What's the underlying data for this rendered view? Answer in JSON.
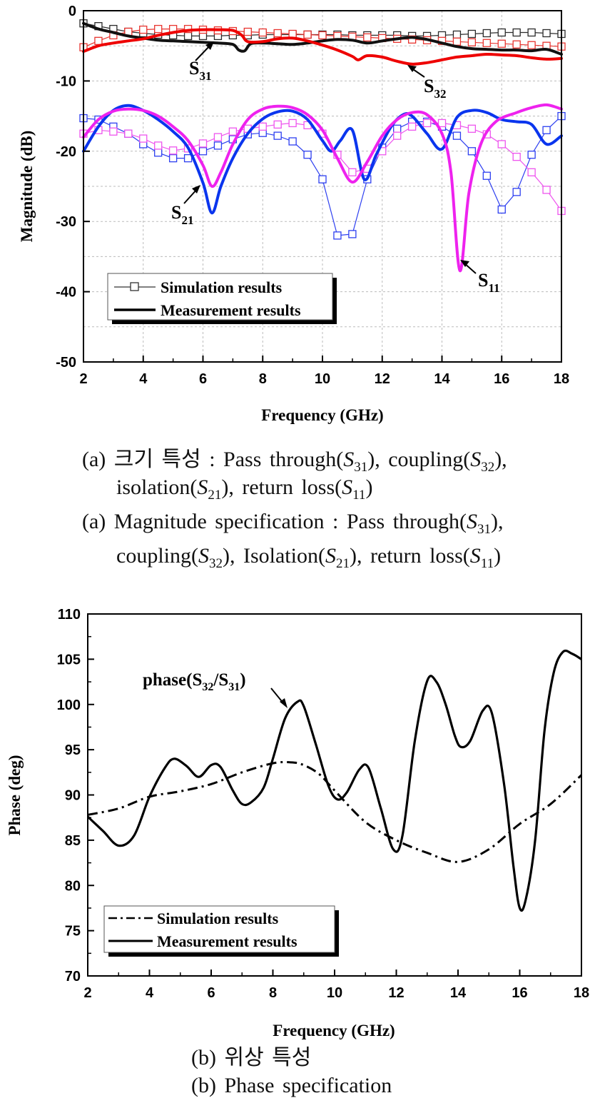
{
  "colors": {
    "sim_S31": "#2b2b2b",
    "sim_S32": "#e8342f",
    "sim_S21": "#2d3ff0",
    "sim_S11": "#ee55ee",
    "meas_S31": "#111111",
    "meas_S32": "#ee0000",
    "meas_S21": "#0a35ee",
    "meas_S11": "#ee22ee"
  },
  "chart_data": [
    {
      "type": "line",
      "title": "",
      "xlabel": "Frequency (GHz)",
      "ylabel": "Magnitude (dB)",
      "xlim": [
        2,
        18
      ],
      "ylim": [
        -50,
        0
      ],
      "xticks": [
        "2",
        "4",
        "6",
        "8",
        "10",
        "12",
        "14",
        "16",
        "18"
      ],
      "yticks": [
        "0",
        "-10",
        "-20",
        "-30",
        "-40",
        "-50"
      ],
      "grid": true,
      "legend": {
        "position": "bottom-left",
        "entries": [
          "Simulation results",
          "Measurement results"
        ]
      },
      "annotations": {
        "S31": {
          "main": "S",
          "sub": "31"
        },
        "S32": {
          "main": "S",
          "sub": "32"
        },
        "S21": {
          "main": "S",
          "sub": "21"
        },
        "S11": {
          "main": "S",
          "sub": "11"
        }
      },
      "series": [
        {
          "name": "S31",
          "kind": "simulation",
          "x": [
            2,
            2.5,
            3,
            3.5,
            4,
            4.5,
            5,
            5.5,
            6,
            6.5,
            7,
            7.5,
            8,
            8.5,
            9,
            9.5,
            10,
            10.5,
            11,
            11.5,
            12,
            12.5,
            13,
            13.5,
            14,
            14.5,
            15,
            15.5,
            16,
            16.5,
            17,
            17.5,
            18
          ],
          "y": [
            -1.8,
            -2.2,
            -2.6,
            -3.0,
            -3.2,
            -3.4,
            -3.5,
            -3.6,
            -3.6,
            -3.6,
            -3.5,
            -3.5,
            -3.4,
            -3.4,
            -3.4,
            -3.4,
            -3.4,
            -3.4,
            -3.5,
            -3.5,
            -3.5,
            -3.5,
            -3.6,
            -3.6,
            -3.5,
            -3.4,
            -3.3,
            -3.2,
            -3.1,
            -3.1,
            -3.1,
            -3.2,
            -3.3
          ]
        },
        {
          "name": "S32",
          "kind": "simulation",
          "x": [
            2,
            2.5,
            3,
            3.5,
            4,
            4.5,
            5,
            5.5,
            6,
            6.5,
            7,
            7.5,
            8,
            8.5,
            9,
            9.5,
            10,
            10.5,
            11,
            11.5,
            12,
            12.5,
            13,
            13.5,
            14,
            14.5,
            15,
            15.5,
            16,
            16.5,
            17,
            17.5,
            18
          ],
          "y": [
            -5.2,
            -4.3,
            -3.5,
            -3.0,
            -2.7,
            -2.6,
            -2.6,
            -2.6,
            -2.7,
            -2.8,
            -2.9,
            -3.0,
            -3.1,
            -3.2,
            -3.3,
            -3.4,
            -3.5,
            -3.6,
            -3.7,
            -3.8,
            -3.9,
            -4.0,
            -4.1,
            -4.2,
            -4.3,
            -4.4,
            -4.5,
            -4.6,
            -4.7,
            -4.8,
            -4.9,
            -5.0,
            -5.1
          ]
        },
        {
          "name": "S21",
          "kind": "simulation",
          "x": [
            2,
            2.5,
            3,
            3.5,
            4,
            4.5,
            5,
            5.5,
            6,
            6.5,
            7,
            7.5,
            8,
            8.5,
            9,
            9.5,
            10,
            10.5,
            11,
            11.5,
            12,
            12.5,
            13,
            13.5,
            14,
            14.5,
            15,
            15.5,
            16,
            16.5,
            17,
            17.5,
            18
          ],
          "y": [
            -15.3,
            -15.5,
            -16.5,
            -17.5,
            -19.0,
            -20.2,
            -21.0,
            -21.0,
            -20.0,
            -19.2,
            -18.3,
            -17.6,
            -17.4,
            -17.8,
            -18.6,
            -20.5,
            -24.0,
            -32.0,
            -31.8,
            -24.0,
            -19.5,
            -16.8,
            -15.8,
            -15.8,
            -16.5,
            -17.8,
            -20.0,
            -23.5,
            -28.3,
            -25.8,
            -20.5,
            -17.0,
            -15.0
          ]
        },
        {
          "name": "S11",
          "kind": "simulation",
          "x": [
            2,
            2.5,
            3,
            3.5,
            4,
            4.5,
            5,
            5.5,
            6,
            6.5,
            7,
            7.5,
            8,
            8.5,
            9,
            9.5,
            10,
            10.5,
            11,
            11.5,
            12,
            12.5,
            13,
            13.5,
            14,
            14.5,
            15,
            15.5,
            16,
            16.5,
            17,
            17.5,
            18
          ],
          "y": [
            -17.5,
            -17.0,
            -17.2,
            -17.5,
            -18.2,
            -19.2,
            -19.9,
            -19.6,
            -18.9,
            -18.0,
            -17.2,
            -16.8,
            -16.5,
            -16.2,
            -16.0,
            -16.3,
            -17.5,
            -20.5,
            -23.0,
            -22.5,
            -20.0,
            -17.8,
            -16.5,
            -16.0,
            -16.0,
            -16.3,
            -16.8,
            -17.6,
            -19.0,
            -20.8,
            -23.0,
            -25.5,
            -28.5
          ]
        },
        {
          "name": "S31",
          "kind": "measurement",
          "x": [
            2,
            2.5,
            3,
            3.5,
            4,
            4.5,
            5,
            5.5,
            6,
            6.5,
            7,
            7.2,
            7.4,
            7.6,
            8,
            8.5,
            9,
            9.5,
            10,
            10.5,
            11,
            11.5,
            12,
            12.5,
            13,
            13.5,
            14,
            14.5,
            15,
            15.5,
            16,
            16.5,
            17,
            17.5,
            18
          ],
          "y": [
            -1.8,
            -2.6,
            -3.1,
            -3.6,
            -3.9,
            -4.2,
            -4.3,
            -4.4,
            -4.5,
            -4.6,
            -4.8,
            -5.6,
            -5.7,
            -4.7,
            -4.6,
            -4.7,
            -4.8,
            -4.6,
            -4.3,
            -4.1,
            -4.2,
            -4.6,
            -4.3,
            -4.0,
            -3.8,
            -4.1,
            -4.6,
            -5.1,
            -5.4,
            -5.5,
            -5.6,
            -5.6,
            -5.7,
            -5.5,
            -6.2
          ]
        },
        {
          "name": "S32",
          "kind": "measurement",
          "x": [
            2,
            2.5,
            3,
            3.5,
            4,
            4.5,
            5,
            5.5,
            6,
            6.5,
            7,
            7.3,
            7.5,
            8,
            8.5,
            9,
            9.5,
            10,
            10.5,
            11,
            11.2,
            11.5,
            12,
            12.5,
            13,
            13.5,
            14,
            14.5,
            15,
            15.5,
            16,
            16.5,
            17,
            17.5,
            18
          ],
          "y": [
            -5.8,
            -5.0,
            -4.6,
            -4.3,
            -4.0,
            -3.5,
            -3.1,
            -2.8,
            -2.7,
            -2.7,
            -2.8,
            -3.5,
            -4.4,
            -4.4,
            -4.0,
            -3.9,
            -4.3,
            -4.9,
            -5.6,
            -6.5,
            -7.0,
            -6.4,
            -6.6,
            -7.2,
            -7.6,
            -7.4,
            -7.0,
            -6.6,
            -6.4,
            -6.2,
            -6.3,
            -6.4,
            -6.7,
            -6.9,
            -6.8
          ]
        },
        {
          "name": "S21",
          "kind": "measurement",
          "x": [
            2,
            2.5,
            3,
            3.5,
            4,
            4.5,
            5,
            5.5,
            6,
            6.3,
            6.6,
            7,
            7.5,
            8,
            8.5,
            9,
            9.5,
            10,
            10.3,
            10.6,
            11,
            11.4,
            11.8,
            12.3,
            12.7,
            13,
            13.5,
            14,
            14.5,
            15,
            15.5,
            16,
            16.5,
            17,
            17.5,
            18
          ],
          "y": [
            -20.0,
            -16.5,
            -14.2,
            -13.5,
            -14.2,
            -15.5,
            -17.2,
            -19.5,
            -24.5,
            -28.8,
            -25.0,
            -21.0,
            -17.5,
            -15.4,
            -14.4,
            -14.3,
            -15.5,
            -18.5,
            -20.0,
            -18.5,
            -17.0,
            -24.0,
            -20.5,
            -16.5,
            -14.8,
            -15.0,
            -17.5,
            -19.7,
            -15.2,
            -14.2,
            -14.5,
            -15.5,
            -15.8,
            -16.2,
            -19.0,
            -17.8
          ]
        },
        {
          "name": "S11",
          "kind": "measurement",
          "x": [
            2,
            2.5,
            3,
            3.5,
            4,
            4.5,
            5,
            5.5,
            6,
            6.3,
            6.6,
            7,
            7.5,
            8,
            8.5,
            9,
            9.5,
            10,
            10.5,
            11,
            11.5,
            12,
            12.5,
            13,
            13.5,
            14,
            14.3,
            14.6,
            14.9,
            15.3,
            15.8,
            16.5,
            17,
            17.5,
            18
          ],
          "y": [
            -18.0,
            -15.5,
            -14.3,
            -14.0,
            -14.2,
            -15.0,
            -16.5,
            -18.5,
            -22.0,
            -25.0,
            -23.0,
            -19.0,
            -15.5,
            -14.0,
            -13.6,
            -13.8,
            -14.8,
            -17.0,
            -21.0,
            -24.4,
            -21.5,
            -17.8,
            -15.5,
            -14.5,
            -14.8,
            -17.5,
            -23.0,
            -37.0,
            -26.0,
            -19.0,
            -15.8,
            -14.5,
            -13.8,
            -13.4,
            -14.0
          ]
        }
      ]
    },
    {
      "type": "line",
      "title": "",
      "xlabel": "Frequency (GHz)",
      "ylabel": "Phase (deg)",
      "xlim": [
        2,
        18
      ],
      "ylim": [
        70,
        110
      ],
      "xticks": [
        "2",
        "4",
        "6",
        "8",
        "10",
        "12",
        "14",
        "16",
        "18"
      ],
      "yticks": [
        "70",
        "75",
        "80",
        "85",
        "90",
        "95",
        "100",
        "105",
        "110"
      ],
      "grid": false,
      "legend": {
        "position": "bottom-left",
        "entries": [
          "Simulation results",
          "Measurement results"
        ]
      },
      "annotation": {
        "prefix": "phase(S",
        "sub1": "32",
        "mid": "/S",
        "sub2": "31",
        "suffix": ")"
      },
      "series": [
        {
          "name": "Simulation results",
          "style": "dash-dot",
          "x": [
            2,
            3,
            4,
            5,
            6,
            7,
            8,
            8.6,
            9,
            9.5,
            10,
            11,
            12,
            13,
            14,
            15,
            16,
            17,
            18
          ],
          "y": [
            87.8,
            88.5,
            89.8,
            90.4,
            91.2,
            92.5,
            93.5,
            93.6,
            93.3,
            92.3,
            90.5,
            87.0,
            85.0,
            83.6,
            82.6,
            84.0,
            86.8,
            89.0,
            92.2
          ]
        },
        {
          "name": "Measurement results",
          "style": "solid",
          "x": [
            2,
            2.5,
            3,
            3.5,
            4,
            4.5,
            4.8,
            5.2,
            5.6,
            6.0,
            6.3,
            6.7,
            7.0,
            7.3,
            7.7,
            8.0,
            8.4,
            8.8,
            9.0,
            9.4,
            9.8,
            10.1,
            10.4,
            10.8,
            11.1,
            11.5,
            11.9,
            12.2,
            12.6,
            13.0,
            13.3,
            13.6,
            13.9,
            14.1,
            14.4,
            14.8,
            15.1,
            15.5,
            15.8,
            16.0,
            16.2,
            16.5,
            16.8,
            17.1,
            17.4,
            17.7,
            18
          ],
          "y": [
            87.6,
            86.0,
            84.4,
            85.5,
            89.8,
            93.0,
            94.0,
            93.2,
            92.0,
            93.3,
            93.1,
            90.5,
            89.0,
            89.2,
            90.8,
            94.0,
            98.5,
            100.3,
            99.8,
            95.5,
            91.0,
            89.5,
            90.3,
            92.8,
            93.0,
            88.5,
            84.0,
            85.5,
            96.0,
            102.6,
            102.5,
            100.0,
            96.5,
            95.3,
            96.0,
            99.3,
            99.0,
            91.0,
            82.0,
            77.5,
            78.5,
            85.0,
            97.0,
            103.5,
            105.8,
            105.6,
            105.0
          ]
        }
      ]
    }
  ],
  "captions": {
    "a_ko_label": "(a)",
    "a_ko_text": "크기 특성 : Pass through(",
    "a_ko_l2_start": "isolation(",
    "a_ko_return": "return loss(",
    "a_en_label": "(a)",
    "a_en_text": "Magnitude specification : Pass through(",
    "a_en_l2_start": "coupling(",
    "a_en_isolation": "Isolation(",
    "a_en_return": "return loss(",
    "coupling_word": "coupling(",
    "s_letter": "S",
    "sub31": "31",
    "sub32": "32",
    "sub21": "21",
    "sub11": "11",
    "b_ko": "(b) 위상 특성",
    "b_en": "(b) Phase specification"
  }
}
